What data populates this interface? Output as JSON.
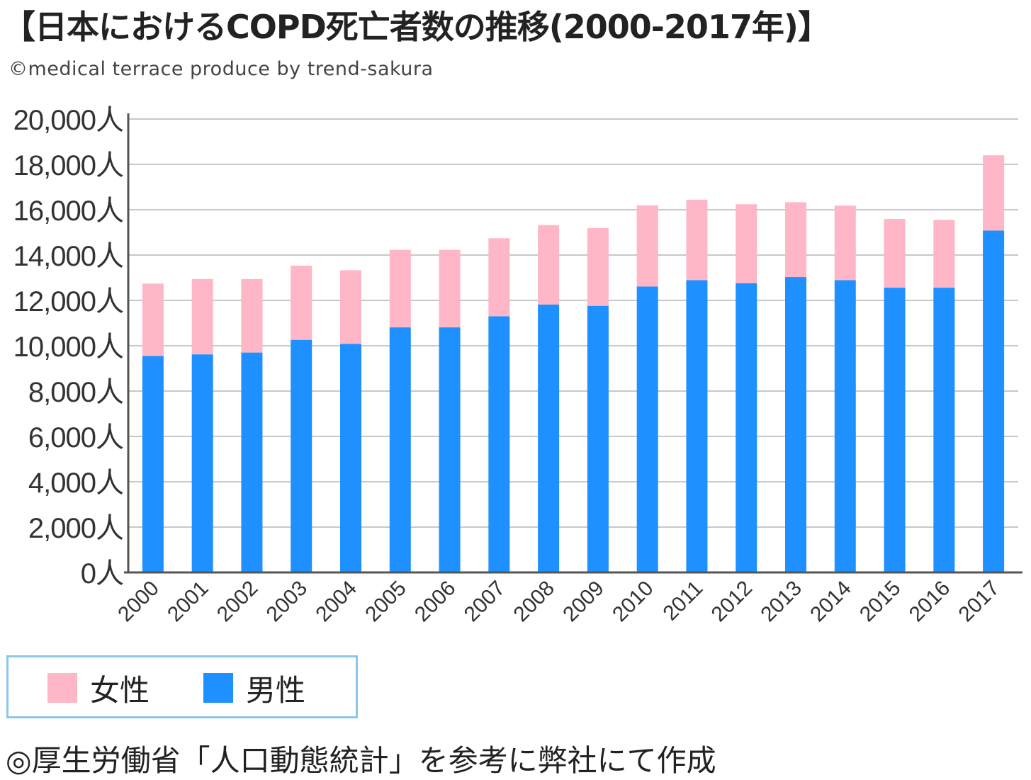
{
  "title": "【日本におけるCOPD死亡者数の推移(2000-2017年)】",
  "credit": "©medical terrace produce by trend-sakura",
  "source_note": "◎厚生労働省「人口動態統計」を参考に弊社にて作成",
  "colors": {
    "female": "#ffb6c6",
    "male": "#1e90ff",
    "grid": "#c8c8c8",
    "axis": "#555555",
    "legend_border": "#8cc6ea"
  },
  "legend": [
    {
      "key": "female",
      "label": "女性",
      "color": "#ffb6c6"
    },
    {
      "key": "male",
      "label": "男性",
      "color": "#1e90ff"
    }
  ],
  "chart_data": {
    "type": "bar",
    "stacked": true,
    "title": "【日本におけるCOPD死亡者数の推移(2000-2017年)】",
    "xlabel": "",
    "ylabel": "",
    "ylim": [
      0,
      20000
    ],
    "yticks": [
      0,
      2000,
      4000,
      6000,
      8000,
      10000,
      12000,
      14000,
      16000,
      18000,
      20000
    ],
    "ytick_labels": [
      "0人",
      "2,000人",
      "4,000人",
      "6,000人",
      "8,000人",
      "10,000人",
      "12,000人",
      "14,000人",
      "16,000人",
      "18,000人",
      "20,000人"
    ],
    "grid": true,
    "legend_position": "bottom-left",
    "categories": [
      "2000",
      "2001",
      "2002",
      "2003",
      "2004",
      "2005",
      "2006",
      "2007",
      "2008",
      "2009",
      "2010",
      "2011",
      "2012",
      "2013",
      "2014",
      "2015",
      "2016",
      "2017"
    ],
    "series": [
      {
        "name": "男性",
        "color": "#1e90ff",
        "values": [
          9550,
          9620,
          9700,
          10260,
          10080,
          10810,
          10810,
          11300,
          11820,
          11760,
          12610,
          12890,
          12760,
          13030,
          12890,
          12560,
          12560,
          15080
        ]
      },
      {
        "name": "女性",
        "color": "#ffb6c6",
        "values": [
          3190,
          3320,
          3240,
          3270,
          3250,
          3420,
          3420,
          3440,
          3500,
          3430,
          3580,
          3550,
          3480,
          3300,
          3290,
          3030,
          2990,
          3320
        ]
      }
    ]
  }
}
